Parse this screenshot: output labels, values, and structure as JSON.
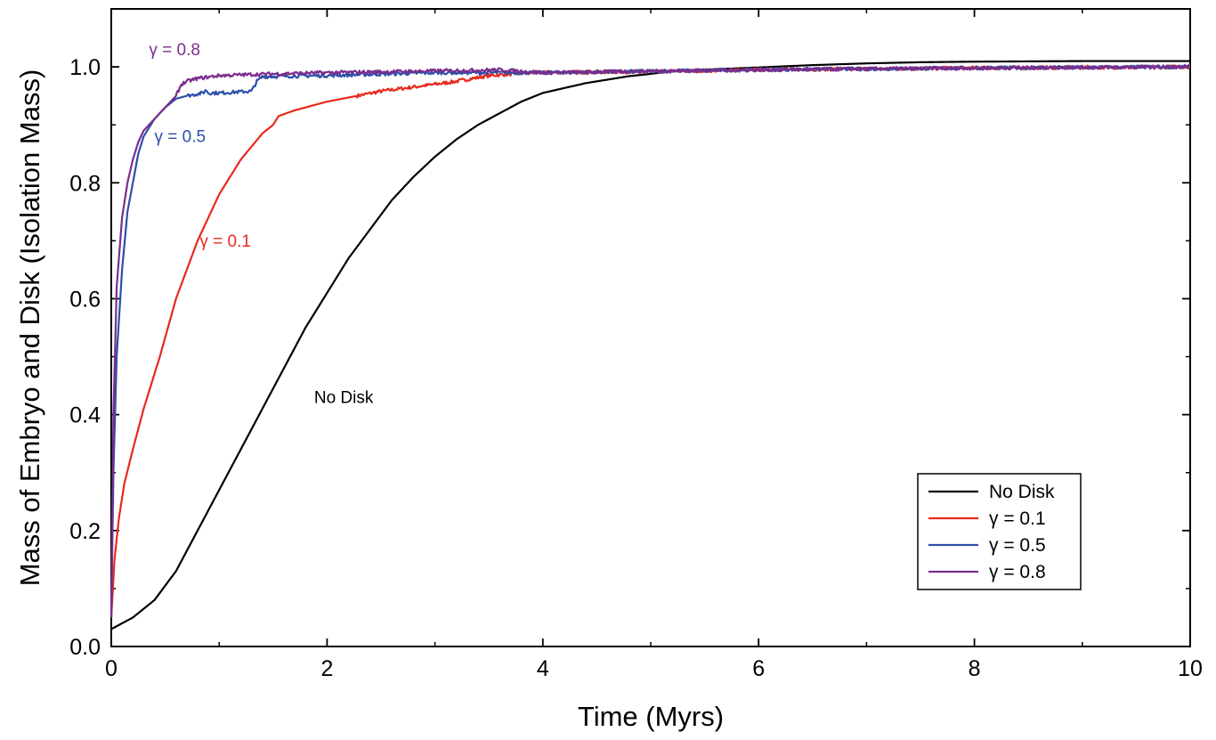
{
  "chart_data": {
    "type": "line",
    "title": "",
    "xlabel": "Time (Myrs)",
    "ylabel": "Mass of Embryo and Disk (Isolation Mass)",
    "xlim": [
      0,
      10
    ],
    "ylim": [
      0,
      1.1
    ],
    "x_ticks": [
      "0",
      "2",
      "4",
      "6",
      "8",
      "10"
    ],
    "y_ticks": [
      "0.0",
      "0.2",
      "0.4",
      "0.6",
      "0.8",
      "1.0"
    ],
    "grid": false,
    "legend_position": "bottom-right",
    "series": [
      {
        "name": "No Disk",
        "color": "#000000",
        "x": [
          0,
          0.2,
          0.4,
          0.6,
          0.8,
          1.0,
          1.2,
          1.4,
          1.6,
          1.8,
          2.0,
          2.2,
          2.4,
          2.6,
          2.8,
          3.0,
          3.2,
          3.4,
          3.6,
          3.8,
          4.0,
          4.4,
          4.8,
          5.2,
          5.6,
          6.0,
          6.5,
          7.0,
          7.5,
          8.0,
          9.0,
          10.0
        ],
        "y": [
          0.03,
          0.05,
          0.08,
          0.13,
          0.2,
          0.27,
          0.34,
          0.41,
          0.48,
          0.55,
          0.61,
          0.67,
          0.72,
          0.77,
          0.81,
          0.845,
          0.875,
          0.9,
          0.92,
          0.94,
          0.955,
          0.972,
          0.984,
          0.992,
          0.996,
          0.999,
          1.003,
          1.006,
          1.008,
          1.009,
          1.01,
          1.01
        ],
        "noise": 0
      },
      {
        "name": "γ = 0.1",
        "color": "#e8281e",
        "x": [
          0,
          0.03,
          0.07,
          0.12,
          0.2,
          0.3,
          0.45,
          0.6,
          0.8,
          1.0,
          1.2,
          1.4,
          1.5,
          1.55,
          1.7,
          2.0,
          2.5,
          3.0,
          3.2,
          3.5,
          3.9,
          5.0,
          6.0,
          8.0,
          10.0
        ],
        "y": [
          0.05,
          0.15,
          0.22,
          0.28,
          0.34,
          0.41,
          0.5,
          0.6,
          0.7,
          0.78,
          0.84,
          0.885,
          0.9,
          0.915,
          0.925,
          0.94,
          0.958,
          0.97,
          0.975,
          0.985,
          0.99,
          0.992,
          0.995,
          0.998,
          1.0
        ],
        "noise": 0.003
      },
      {
        "name": "γ = 0.5",
        "color": "#2e4fa8",
        "x": [
          0,
          0.02,
          0.05,
          0.1,
          0.15,
          0.2,
          0.25,
          0.3,
          0.4,
          0.5,
          0.6,
          0.7,
          0.85,
          0.88,
          0.9,
          1.0,
          1.1,
          1.2,
          1.3,
          1.35,
          1.4,
          1.6,
          2.0,
          3.0,
          3.6,
          4.0,
          6.0,
          8.0,
          10.0
        ],
        "y": [
          0.05,
          0.3,
          0.5,
          0.65,
          0.75,
          0.8,
          0.85,
          0.88,
          0.91,
          0.93,
          0.945,
          0.95,
          0.955,
          0.96,
          0.955,
          0.955,
          0.956,
          0.957,
          0.958,
          0.975,
          0.983,
          0.984,
          0.985,
          0.99,
          0.99,
          0.99,
          0.995,
          0.998,
          1.0
        ],
        "noise": 0.003
      },
      {
        "name": "γ = 0.8",
        "color": "#7b2d8e",
        "x": [
          0,
          0.02,
          0.05,
          0.1,
          0.15,
          0.2,
          0.25,
          0.3,
          0.4,
          0.5,
          0.6,
          0.65,
          0.7,
          0.8,
          1.0,
          1.5,
          2.0,
          3.0,
          3.6,
          4.0,
          6.0,
          8.0,
          10.0
        ],
        "y": [
          0.05,
          0.4,
          0.62,
          0.74,
          0.8,
          0.84,
          0.87,
          0.89,
          0.91,
          0.93,
          0.95,
          0.97,
          0.975,
          0.98,
          0.985,
          0.988,
          0.99,
          0.993,
          0.995,
          0.99,
          0.995,
          0.998,
          1.0
        ],
        "noise": 0.003
      }
    ],
    "annotations": [
      {
        "text": "γ = 0.8",
        "x": 0.35,
        "y": 1.02,
        "color": "#7b2d8e"
      },
      {
        "text": "γ = 0.5",
        "x": 0.4,
        "y": 0.87,
        "color": "#2e4fa8"
      },
      {
        "text": "γ = 0.1",
        "x": 0.82,
        "y": 0.69,
        "color": "#e8281e"
      },
      {
        "text": "No Disk",
        "x": 1.88,
        "y": 0.42,
        "color": "#000000"
      }
    ]
  }
}
